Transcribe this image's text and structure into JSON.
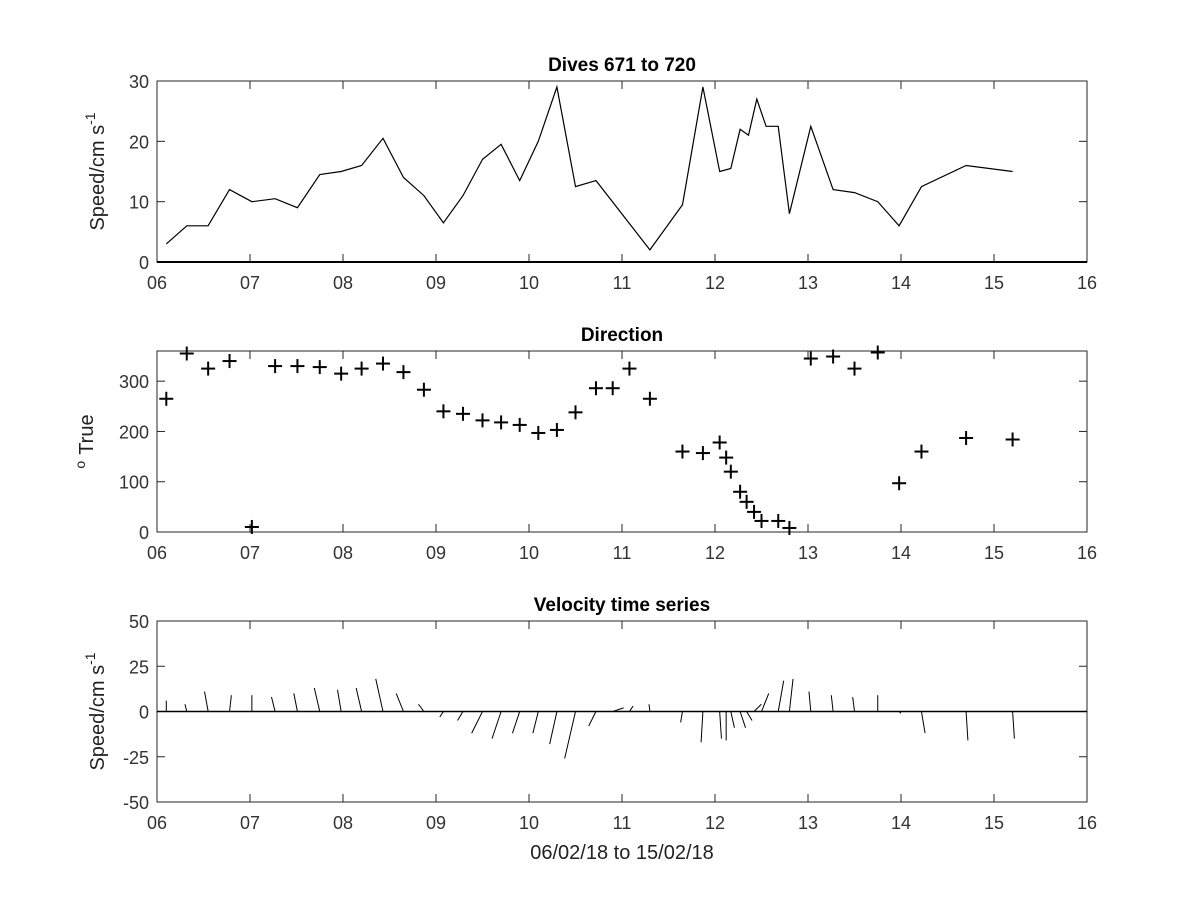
{
  "chart_data": [
    {
      "type": "line",
      "title": "Dives 671 to 720",
      "xlabel": "",
      "ylabel": "Speed/cm s",
      "ylabel_superscript": "-1",
      "xlim": [
        6,
        16
      ],
      "ylim": [
        0,
        30
      ],
      "xticks": [
        "06",
        "07",
        "08",
        "09",
        "10",
        "11",
        "12",
        "13",
        "14",
        "15",
        "16"
      ],
      "yticks": [
        "0",
        "10",
        "20",
        "30"
      ],
      "grid": false,
      "color": "#000000",
      "x": [
        6.1,
        6.32,
        6.55,
        6.78,
        7.02,
        7.27,
        7.51,
        7.75,
        7.98,
        8.2,
        8.43,
        8.65,
        8.87,
        9.08,
        9.29,
        9.5,
        9.7,
        9.9,
        10.1,
        10.3,
        10.5,
        10.72,
        11.3,
        11.65,
        11.87,
        12.05,
        12.17,
        12.27,
        12.36,
        12.45,
        12.55,
        12.68,
        12.8,
        13.03,
        13.27,
        13.5,
        13.75,
        13.98,
        14.22,
        14.7,
        15.2
      ],
      "y": [
        3,
        6,
        6,
        12,
        10,
        10.5,
        9,
        14.5,
        15,
        16,
        20.5,
        14,
        11,
        6.5,
        11,
        17,
        19.5,
        13.5,
        20,
        29,
        12.5,
        13.5,
        2,
        9.5,
        29,
        15,
        15.5,
        22,
        21,
        27,
        22.5,
        22.5,
        8,
        22.5,
        12,
        11.5,
        10,
        6,
        12.5,
        16,
        15
      ]
    },
    {
      "type": "scatter",
      "title": "Direction",
      "xlabel": "",
      "ylabel": "True",
      "ylabel_prefix_superscript": "o",
      "xlim": [
        6,
        16
      ],
      "ylim": [
        0,
        360
      ],
      "xticks": [
        "06",
        "07",
        "08",
        "09",
        "10",
        "11",
        "12",
        "13",
        "14",
        "15",
        "16"
      ],
      "yticks": [
        "0",
        "100",
        "200",
        "300"
      ],
      "marker": "+",
      "grid": false,
      "color": "#000000",
      "x": [
        6.1,
        6.32,
        6.55,
        6.78,
        7.02,
        7.27,
        7.51,
        7.75,
        7.98,
        8.2,
        8.43,
        8.65,
        8.87,
        9.08,
        9.29,
        9.5,
        9.7,
        9.9,
        10.1,
        10.3,
        10.5,
        10.72,
        10.9,
        11.08,
        11.3,
        11.65,
        11.87,
        12.05,
        12.12,
        12.17,
        12.27,
        12.34,
        12.42,
        12.5,
        12.68,
        12.8,
        13.03,
        13.27,
        13.5,
        13.75,
        13.98,
        14.22,
        14.7,
        15.2
      ],
      "y": [
        265,
        355,
        325,
        340,
        10,
        330,
        330,
        328,
        315,
        325,
        335,
        318,
        283,
        240,
        235,
        222,
        218,
        213,
        197,
        203,
        238,
        286,
        286,
        325,
        265,
        160,
        157,
        178,
        148,
        120,
        80,
        60,
        40,
        22,
        22,
        8,
        345,
        349,
        325,
        357,
        97,
        160,
        187,
        184
      ]
    },
    {
      "type": "quiver",
      "title": "Velocity time series",
      "xlabel": "06/02/18 to 15/02/18",
      "ylabel": "Speed/cm s",
      "ylabel_superscript": "-1",
      "xlim": [
        6,
        16
      ],
      "ylim": [
        -50,
        50
      ],
      "xticks": [
        "06",
        "07",
        "08",
        "09",
        "10",
        "11",
        "12",
        "13",
        "14",
        "15",
        "16"
      ],
      "yticks": [
        "-50",
        "-25",
        "0",
        "25",
        "50"
      ],
      "baseline": 0,
      "grid": false,
      "color": "#000000",
      "vectors": [
        {
          "x": 6.1,
          "u": 0,
          "v": 6
        },
        {
          "x": 6.32,
          "u": -1,
          "v": 4
        },
        {
          "x": 6.55,
          "u": -2,
          "v": 11
        },
        {
          "x": 6.78,
          "u": 1,
          "v": 9
        },
        {
          "x": 7.02,
          "u": 0,
          "v": 9
        },
        {
          "x": 7.27,
          "u": -2,
          "v": 8
        },
        {
          "x": 7.51,
          "u": -2,
          "v": 10
        },
        {
          "x": 7.75,
          "u": -3,
          "v": 13
        },
        {
          "x": 7.98,
          "u": -2,
          "v": 12
        },
        {
          "x": 8.2,
          "u": -3,
          "v": 13
        },
        {
          "x": 8.43,
          "u": -4,
          "v": 18
        },
        {
          "x": 8.65,
          "u": -4,
          "v": 10
        },
        {
          "x": 8.87,
          "u": -3,
          "v": 4
        },
        {
          "x": 9.08,
          "u": -2,
          "v": -3
        },
        {
          "x": 9.29,
          "u": -3,
          "v": -5
        },
        {
          "x": 9.5,
          "u": -6,
          "v": -12
        },
        {
          "x": 9.7,
          "u": -5,
          "v": -15
        },
        {
          "x": 9.9,
          "u": -4,
          "v": -12
        },
        {
          "x": 10.1,
          "u": -3,
          "v": -12
        },
        {
          "x": 10.3,
          "u": -4,
          "v": -18
        },
        {
          "x": 10.5,
          "u": -6,
          "v": -26
        },
        {
          "x": 10.72,
          "u": -4,
          "v": -8
        },
        {
          "x": 10.9,
          "u": 6,
          "v": 2
        },
        {
          "x": 11.08,
          "u": 2,
          "v": 3
        },
        {
          "x": 11.3,
          "u": -0.5,
          "v": 4
        },
        {
          "x": 11.65,
          "u": -1,
          "v": -6
        },
        {
          "x": 11.87,
          "u": -1,
          "v": -17
        },
        {
          "x": 12.05,
          "u": 1,
          "v": -15
        },
        {
          "x": 12.12,
          "u": 0,
          "v": -16
        },
        {
          "x": 12.17,
          "u": 2,
          "v": -9
        },
        {
          "x": 12.27,
          "u": 3,
          "v": -9
        },
        {
          "x": 12.34,
          "u": 3,
          "v": -5
        },
        {
          "x": 12.42,
          "u": 4,
          "v": 4
        },
        {
          "x": 12.5,
          "u": 4,
          "v": 10
        },
        {
          "x": 12.68,
          "u": 3,
          "v": 17
        },
        {
          "x": 12.8,
          "u": 2,
          "v": 18
        },
        {
          "x": 13.03,
          "u": -1,
          "v": 11
        },
        {
          "x": 13.27,
          "u": -1,
          "v": 9
        },
        {
          "x": 13.5,
          "u": -1,
          "v": 8
        },
        {
          "x": 13.75,
          "u": 0,
          "v": 9
        },
        {
          "x": 13.98,
          "u": 1,
          "v": -1
        },
        {
          "x": 14.22,
          "u": 2,
          "v": -12
        },
        {
          "x": 14.7,
          "u": 1,
          "v": -16
        },
        {
          "x": 15.2,
          "u": 1,
          "v": -15
        }
      ]
    }
  ]
}
